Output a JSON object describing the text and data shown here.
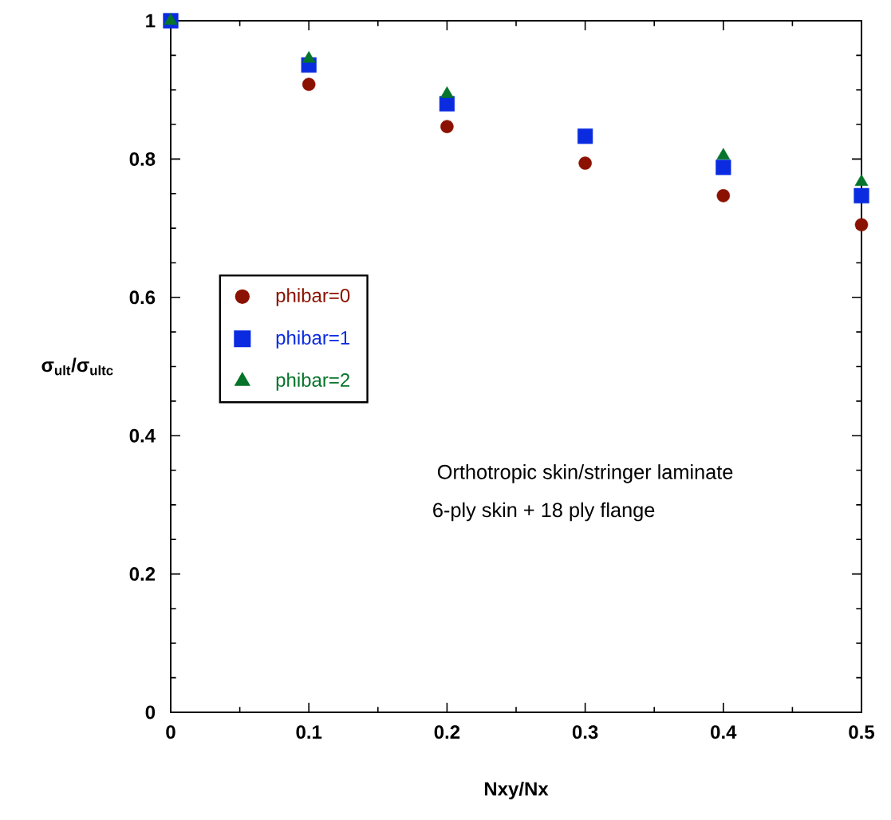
{
  "chart_data": {
    "type": "scatter",
    "xlabel": "Nxy/Nx",
    "ylabel": "σ$_{ult}$/σ$_{ultc}$",
    "x": [
      0,
      0.1,
      0.2,
      0.3,
      0.4,
      0.5
    ],
    "series": [
      {
        "name": "phibar=0",
        "color": "#8b1200",
        "marker": "circle",
        "values": [
          null,
          0.908,
          0.847,
          0.794,
          0.747,
          0.705
        ]
      },
      {
        "name": "phibar=1",
        "color": "#0a2be0",
        "marker": "square",
        "values": [
          1,
          0.936,
          0.88,
          0.833,
          0.788,
          0.747
        ]
      },
      {
        "name": "phibar=2",
        "color": "#06742a",
        "marker": "triangle",
        "values": [
          1,
          0.945,
          0.894,
          null,
          0.805,
          0.767
        ]
      }
    ],
    "xlim": [
      0,
      0.5
    ],
    "ylim": [
      0,
      1
    ],
    "xticks": [
      0,
      0.1,
      0.2,
      0.3,
      0.4,
      0.5
    ],
    "yticks": [
      0,
      0.2,
      0.4,
      0.6,
      0.8,
      1
    ],
    "grid": false,
    "legend": "left",
    "annotations": [
      "Orthotropic  skin/stringer  laminate",
      "6-ply  skin  +  18  ply  flange"
    ]
  }
}
